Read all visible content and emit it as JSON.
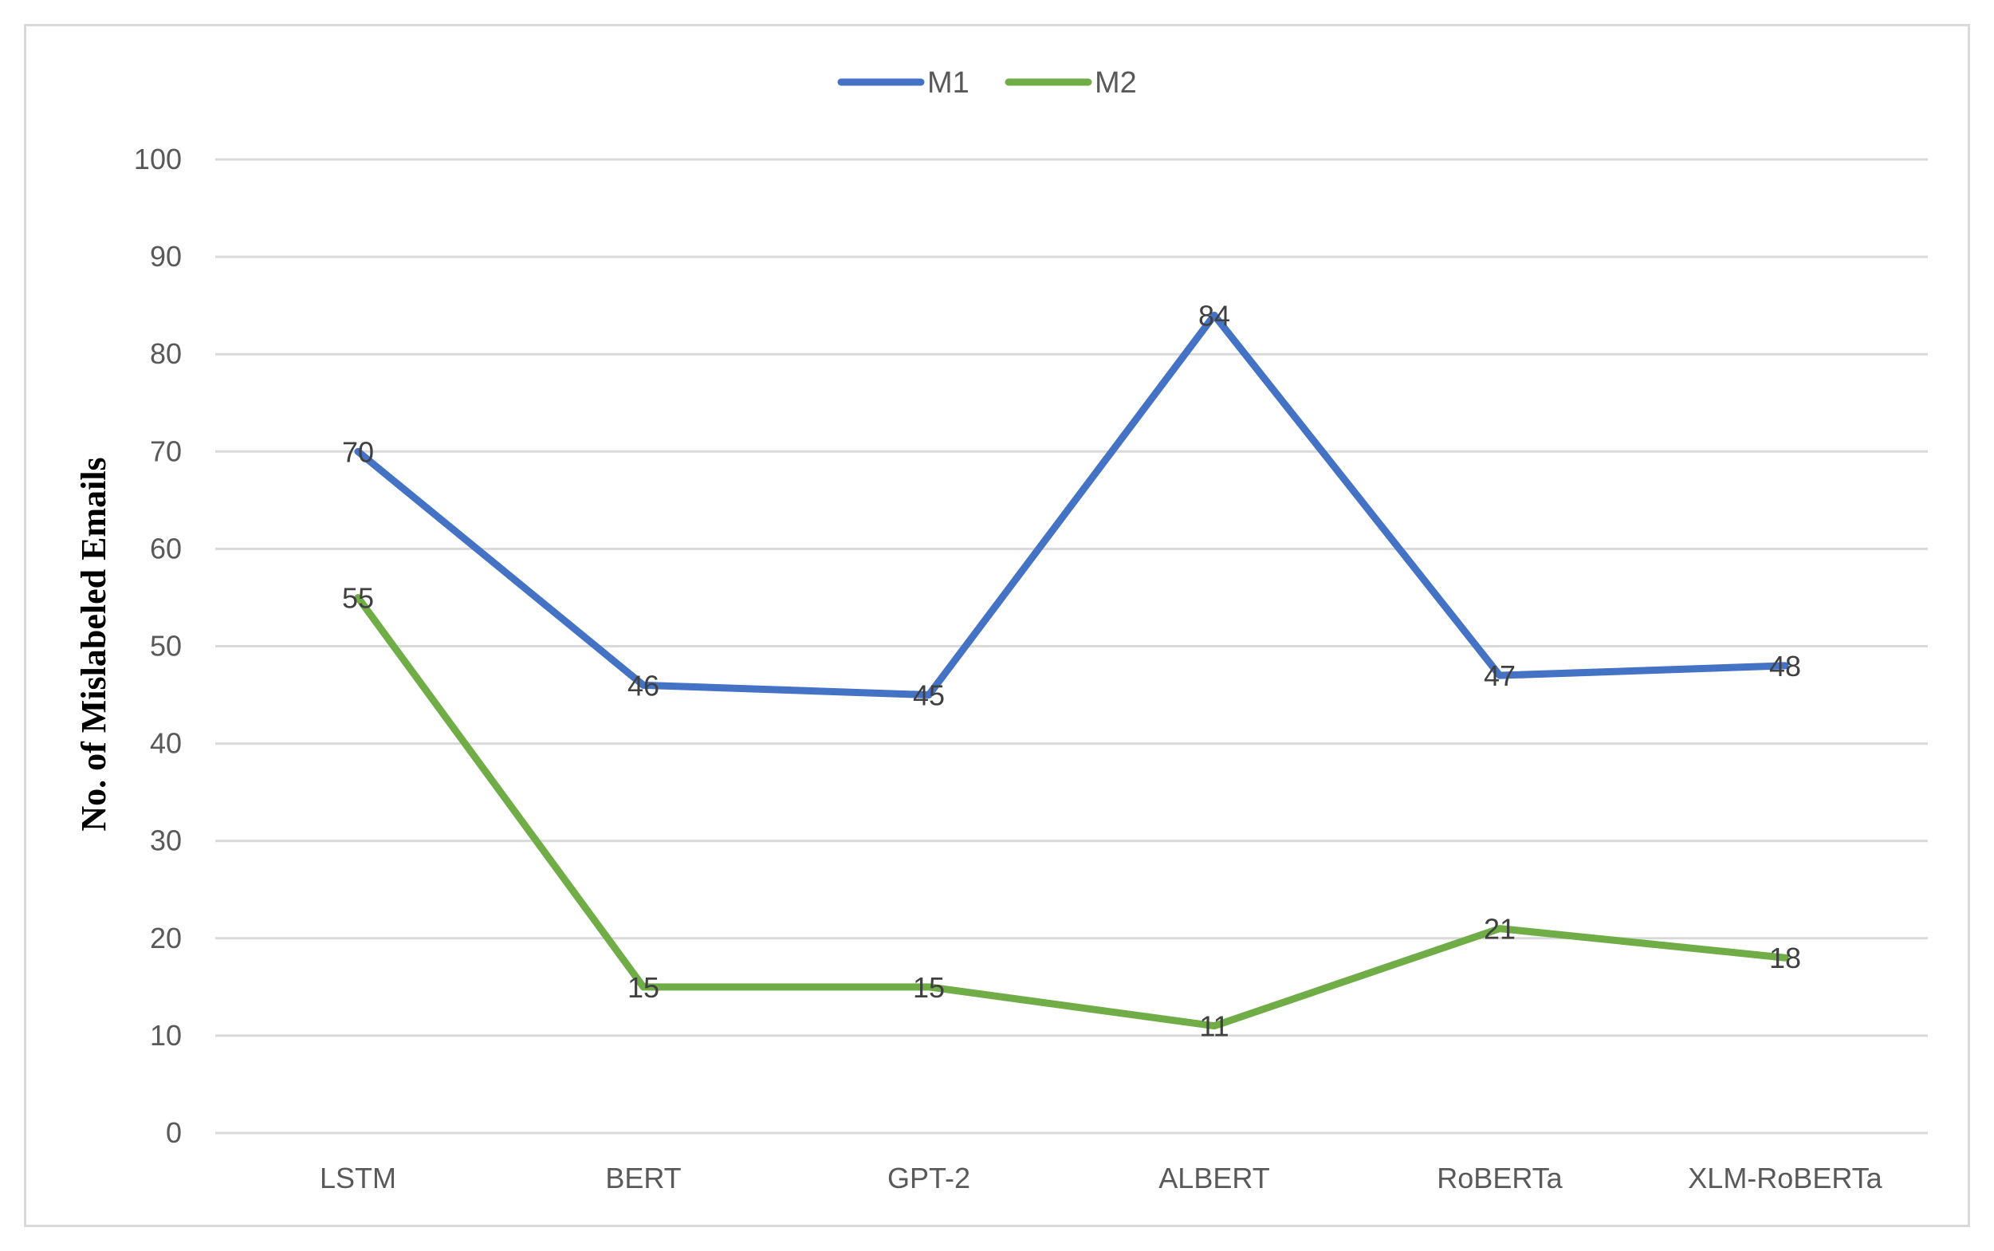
{
  "chart_data": {
    "type": "line",
    "title": "",
    "xlabel": "",
    "ylabel": "No. of Mislabeled Emails",
    "categories": [
      "LSTM",
      "BERT",
      "GPT-2",
      "ALBERT",
      "RoBERTa",
      "XLM-RoBERTa"
    ],
    "series": [
      {
        "name": "M1",
        "color": "#4472c4",
        "values": [
          70,
          46,
          45,
          84,
          47,
          48
        ]
      },
      {
        "name": "M2",
        "color": "#70ad47",
        "values": [
          55,
          15,
          15,
          11,
          21,
          18
        ]
      }
    ],
    "ylim": [
      0,
      100
    ],
    "yticks": [
      0,
      10,
      20,
      30,
      40,
      50,
      60,
      70,
      80,
      90,
      100
    ],
    "grid": true,
    "legend": "top-center",
    "data_labels": true
  }
}
